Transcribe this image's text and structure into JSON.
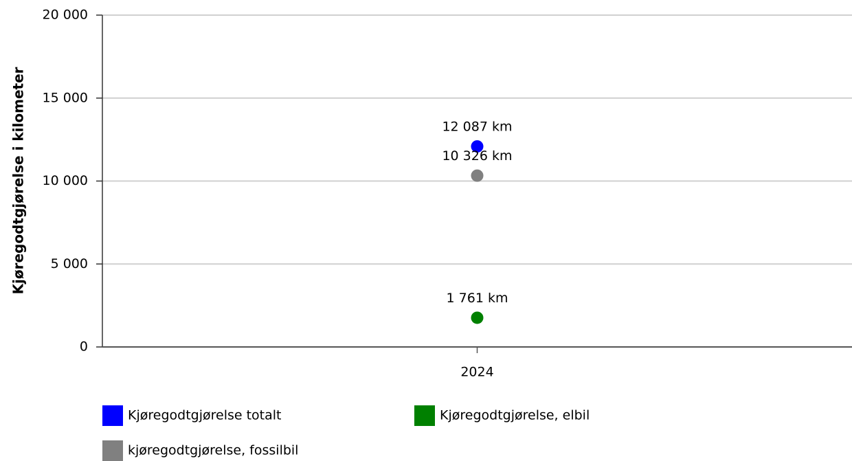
{
  "chart_data": {
    "type": "dot",
    "y_label": "Kjøregodtgjørelse i kilometer",
    "categories": [
      "2024"
    ],
    "series": [
      {
        "name": "Kjøregodtgjørelse totalt",
        "color": "#0000ff",
        "values": [
          12087
        ],
        "value_labels": [
          "12 087 km"
        ]
      },
      {
        "name": "Kjøregodtgjørelse, elbil",
        "color": "#008000",
        "values": [
          1761
        ],
        "value_labels": [
          "1 761 km"
        ]
      },
      {
        "name": "kjøregodtgjørelse, fossilbil",
        "color": "#808080",
        "values": [
          10326
        ],
        "value_labels": [
          "10 326 km"
        ]
      }
    ],
    "ylim": [
      0,
      20000
    ],
    "yticks": [
      0,
      {
        "value": 5000,
        "label": "5 000"
      },
      {
        "value": 10000,
        "label": "10 000"
      },
      {
        "value": 15000,
        "label": "15 000"
      },
      {
        "value": 20000,
        "label": "20 000"
      }
    ],
    "grid": true
  }
}
